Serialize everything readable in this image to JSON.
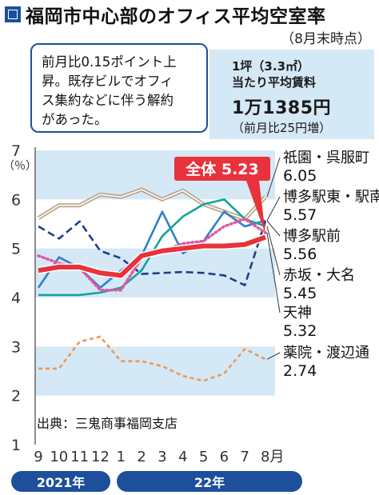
{
  "header": {
    "title": "福岡市中心部のオフィス平均空室率",
    "as_of": "（8月末時点）"
  },
  "note": {
    "lines": [
      "前月比0.15ポイント上",
      "昇。既存ビルでオフィ",
      "ス集約などに伴う解約",
      "があった。"
    ]
  },
  "rent": {
    "label1": "1坪（3.3㎡）",
    "label2": "当たり平均賃料",
    "value": "1万1385円",
    "change": "（前月比25円増）"
  },
  "source": "出典：三鬼商事福岡支店",
  "years": {
    "y2021": "2021年",
    "y2022": "22年"
  },
  "colors": {
    "accent": "#1d4f9c",
    "band": "#d5e8f6",
    "overall": "#e8323c",
    "gion": "#b9a48a",
    "hakata_east": "#2f7fc8",
    "hakata_mae": "#1f3f8a",
    "akasaka": "#14a39a",
    "tenjin": "#e0569f",
    "yakuin": "#e99a55"
  },
  "chart_data": {
    "type": "line",
    "unit": "（％）",
    "ylim": [
      1,
      7
    ],
    "yticks": [
      "1",
      "2",
      "3",
      "4",
      "5",
      "6",
      "7"
    ],
    "categories": [
      "9",
      "10",
      "11",
      "12",
      "1",
      "2",
      "3",
      "4",
      "5",
      "6",
      "7",
      "8月"
    ],
    "series": [
      {
        "key": "gion",
        "name": "祇園・呉服町",
        "label_value": "6.05",
        "color": "#b9a48a",
        "style": "solid-double",
        "values": [
          5.62,
          5.88,
          5.88,
          6.1,
          6.05,
          6.2,
          6.0,
          6.18,
          5.9,
          5.75,
          5.6,
          6.05
        ]
      },
      {
        "key": "hakata_east",
        "name": "博多駅東・駅南",
        "label_value": "5.57",
        "color": "#2f7fc8",
        "style": "solid",
        "values": [
          4.2,
          4.82,
          4.6,
          4.2,
          4.55,
          4.85,
          5.75,
          4.9,
          5.15,
          5.75,
          5.45,
          5.57
        ]
      },
      {
        "key": "hakata_mae",
        "name": "博多駅前",
        "label_value": "5.56",
        "color": "#1f3f8a",
        "style": "dashed",
        "values": [
          5.45,
          5.2,
          5.55,
          4.95,
          4.8,
          4.48,
          4.5,
          4.52,
          4.5,
          4.45,
          4.25,
          5.56
        ]
      },
      {
        "key": "akasaka",
        "name": "赤坂・大名",
        "label_value": "5.45",
        "color": "#14a39a",
        "style": "solid",
        "values": [
          4.05,
          4.05,
          4.05,
          4.1,
          4.2,
          4.55,
          5.25,
          5.65,
          5.9,
          6.0,
          5.6,
          5.45
        ]
      },
      {
        "key": "tenjin",
        "name": "天神",
        "label_value": "5.32",
        "color": "#e0569f",
        "style": "dotted",
        "values": [
          4.85,
          4.7,
          4.6,
          4.15,
          4.15,
          4.8,
          4.95,
          5.1,
          5.15,
          5.45,
          5.6,
          5.32
        ]
      },
      {
        "key": "yakuin",
        "name": "薬院・渡辺通",
        "label_value": "2.74",
        "color": "#e99a55",
        "style": "dashed-fine",
        "values": [
          2.55,
          2.55,
          3.1,
          3.2,
          2.7,
          2.7,
          2.6,
          2.4,
          2.3,
          2.45,
          2.95,
          2.74
        ]
      },
      {
        "key": "overall",
        "name": "全体",
        "label_value": "5.23",
        "color": "#e8323c",
        "style": "bold",
        "values": [
          4.55,
          4.62,
          4.62,
          4.5,
          4.45,
          4.85,
          4.95,
          5.0,
          5.05,
          5.05,
          5.08,
          5.23
        ]
      }
    ]
  }
}
